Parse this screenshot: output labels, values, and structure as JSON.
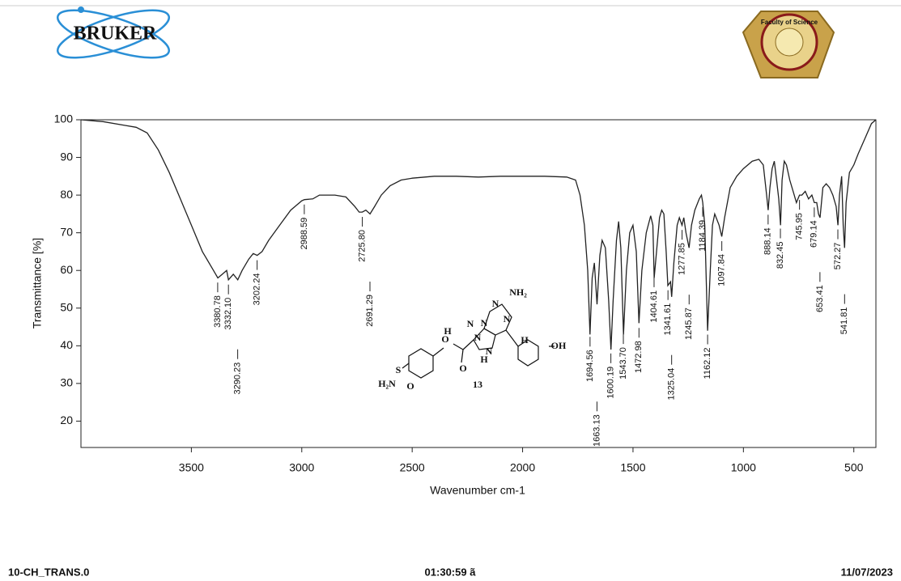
{
  "header": {
    "logo_left": "BRUKER",
    "logo_right": "Faculty of Science"
  },
  "chart_data": {
    "type": "line",
    "xlabel": "Wavenumber cm-1",
    "ylabel": "Transmittance [%]",
    "xlim": [
      4000,
      400
    ],
    "ylim": [
      13,
      100
    ],
    "xticks": [
      3500,
      3000,
      2500,
      2000,
      1500,
      1000,
      500
    ],
    "yticks": [
      20,
      30,
      40,
      50,
      60,
      70,
      80,
      90,
      100
    ],
    "color": "#222222",
    "x": [
      4000,
      3900,
      3800,
      3750,
      3700,
      3650,
      3600,
      3550,
      3500,
      3450,
      3400,
      3380,
      3360,
      3340,
      3332,
      3310,
      3290,
      3270,
      3240,
      3220,
      3202,
      3180,
      3150,
      3100,
      3050,
      3000,
      2988,
      2950,
      2920,
      2880,
      2850,
      2800,
      2760,
      2740,
      2726,
      2710,
      2691,
      2670,
      2640,
      2600,
      2550,
      2500,
      2400,
      2300,
      2200,
      2100,
      2000,
      1900,
      1800,
      1760,
      1740,
      1720,
      1705,
      1695,
      1685,
      1675,
      1663,
      1650,
      1640,
      1625,
      1610,
      1600,
      1590,
      1575,
      1565,
      1555,
      1543,
      1530,
      1515,
      1500,
      1485,
      1473,
      1460,
      1440,
      1420,
      1410,
      1404,
      1395,
      1380,
      1370,
      1360,
      1350,
      1342,
      1330,
      1325,
      1315,
      1300,
      1290,
      1278,
      1270,
      1260,
      1246,
      1235,
      1220,
      1200,
      1190,
      1184,
      1175,
      1162,
      1150,
      1140,
      1130,
      1110,
      1098,
      1085,
      1060,
      1030,
      1000,
      960,
      930,
      910,
      895,
      888,
      880,
      870,
      860,
      850,
      840,
      832,
      825,
      815,
      805,
      790,
      770,
      760,
      746,
      735,
      720,
      705,
      690,
      679,
      668,
      660,
      653,
      640,
      625,
      610,
      595,
      580,
      572,
      565,
      555,
      548,
      542,
      535,
      520,
      500,
      480,
      450,
      420,
      400
    ],
    "values": [
      100,
      99.5,
      98.5,
      98,
      96.5,
      92,
      86,
      79,
      72,
      65,
      60,
      58,
      59,
      60,
      57.5,
      59,
      57.5,
      60,
      63,
      64.5,
      64,
      65,
      68,
      72,
      76,
      78.5,
      78.8,
      79,
      80,
      80,
      80,
      79.5,
      77,
      75.5,
      75.5,
      76,
      75,
      77,
      80,
      82.5,
      84,
      84.5,
      85,
      85,
      84.8,
      85,
      85,
      85,
      84.8,
      84,
      80,
      72,
      60,
      43,
      58,
      62,
      51,
      64,
      68,
      66,
      52,
      39,
      52,
      68,
      73,
      66,
      43,
      60,
      70,
      72,
      65,
      46,
      60,
      70,
      74.5,
      72,
      58,
      64,
      74,
      76,
      75,
      65,
      56,
      57,
      53,
      62,
      72,
      74,
      72,
      74,
      70,
      66,
      72,
      76,
      79,
      80,
      78,
      72,
      44,
      60,
      72,
      75,
      72,
      69,
      74,
      82,
      85,
      87,
      89,
      89.5,
      88,
      80,
      76,
      82,
      87,
      89,
      84,
      79,
      72,
      84,
      89,
      88,
      84,
      80,
      78,
      80,
      80,
      81,
      79,
      80,
      78,
      78,
      75,
      74,
      82,
      83,
      82,
      80,
      77,
      72,
      80,
      85,
      72,
      66,
      78,
      86,
      88,
      91,
      95,
      99,
      100
    ],
    "peaks": [
      3380.78,
      3332.1,
      3290.23,
      3202.24,
      2988.59,
      2725.8,
      2691.29,
      1694.56,
      1663.13,
      1600.19,
      1543.7,
      1472.98,
      1404.61,
      1341.61,
      1325.04,
      1277.85,
      1245.87,
      1184.39,
      1162.12,
      1097.84,
      888.14,
      832.45,
      745.95,
      679.14,
      653.41,
      572.27,
      541.81
    ],
    "peak_labels": [
      "3380.78",
      "3332.10",
      "3290.23",
      "3202.24",
      "2988.59",
      "2725.80",
      "2691.29",
      "1694.56",
      "1663.13",
      "1600.19",
      "1543.70",
      "1472.98",
      "1404.61",
      "1341.61",
      "1325.04",
      "1277.85",
      "1245.87",
      "1184.39",
      "1162.12",
      "1097.84",
      "888.14",
      "832.45",
      "745.95",
      "679.14",
      "653.41",
      "572.27",
      "541.81"
    ]
  },
  "molecule": {
    "atoms": [
      "NH₂",
      "N",
      "N",
      "N",
      "N",
      "H",
      "N",
      "H",
      "OH",
      "N",
      "H",
      "O",
      "O",
      "S",
      "O",
      "H₂N"
    ],
    "compound": "13"
  },
  "footer": {
    "left": "10-CH_TRANS.0",
    "center": "01:30:59 ã",
    "right": "11/07/2023"
  }
}
